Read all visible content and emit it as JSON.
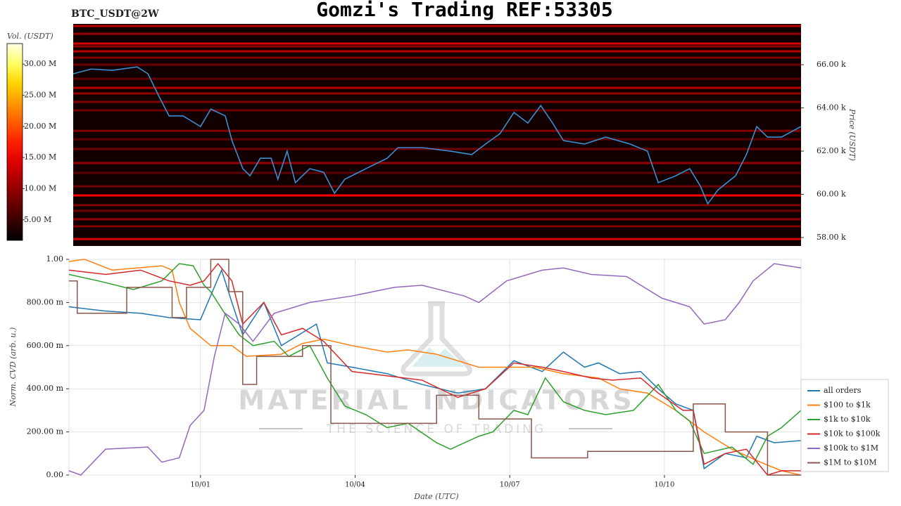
{
  "chart_data": [
    {
      "type": "heatmap",
      "title": "Gomzi's Trading REF:53305",
      "symbol": "BTC_USDT@2W",
      "y_label": "Price (USDT)",
      "colorbar_label": "Vol. (USDT)",
      "xlim": [
        -2.47,
        11.65
      ],
      "ylim": [
        57610,
        67890
      ],
      "yticks": [
        {
          "value": 58000,
          "label": "58.00 k"
        },
        {
          "value": 60000,
          "label": "60.00 k"
        },
        {
          "value": 62000,
          "label": "62.00 k"
        },
        {
          "value": 64000,
          "label": "64.00 k"
        },
        {
          "value": 66000,
          "label": "66.00 k"
        }
      ],
      "clim": [
        1.7,
        33.3
      ],
      "cticks": [
        {
          "value": 5,
          "label": "5.00 M"
        },
        {
          "value": 10,
          "label": "10.00 M"
        },
        {
          "value": 15,
          "label": "15.00 M"
        },
        {
          "value": 20,
          "label": "20.00 M"
        },
        {
          "value": 25,
          "label": "25.00 M"
        },
        {
          "value": 30,
          "label": "30.00 M"
        }
      ],
      "bands": {
        "price": [
          67790,
          67430,
          66980,
          66850,
          66620,
          66330,
          66000,
          65350,
          64930,
          64670,
          64280,
          63890,
          62940,
          62550,
          62100,
          61450,
          60990,
          60370,
          59950,
          59500,
          59240,
          58850,
          58520,
          57930
        ],
        "volume": [
          12,
          10,
          14,
          10,
          12,
          9,
          8,
          7,
          12,
          10,
          9,
          8,
          9,
          7,
          8,
          10,
          7,
          8,
          16,
          9,
          8,
          10,
          9,
          14
        ]
      },
      "price_line": {
        "color": "#3b8ed0",
        "x": [
          -2.47,
          -2.12,
          -1.71,
          -1.23,
          -1.02,
          -0.82,
          -0.61,
          -0.34,
          0,
          0.2,
          0.48,
          0.61,
          0.82,
          0.96,
          1.16,
          1.37,
          1.5,
          1.68,
          1.84,
          2.12,
          2.39,
          2.6,
          2.8,
          3.21,
          3.62,
          3.83,
          4.3,
          4.85,
          5.26,
          5.53,
          5.81,
          6.08,
          6.35,
          6.6,
          6.83,
          7.04,
          7.45,
          7.86,
          8.33,
          8.67,
          8.88,
          9.22,
          9.49,
          9.7,
          9.84,
          10.04,
          10.38,
          10.59,
          10.79,
          11,
          11.27,
          11.65
        ],
        "values": [
          65580,
          65800,
          65740,
          65900,
          65580,
          64600,
          63630,
          63630,
          63140,
          63950,
          63630,
          62490,
          61190,
          60860,
          61670,
          61670,
          60700,
          62000,
          60540,
          61190,
          61020,
          60050,
          60700,
          61190,
          61670,
          62160,
          62160,
          62000,
          61840,
          62330,
          62810,
          63790,
          63300,
          64110,
          63300,
          62490,
          62330,
          62650,
          62330,
          62000,
          60540,
          60860,
          61190,
          60370,
          59560,
          60210,
          60860,
          61840,
          63140,
          62650,
          62650,
          63140
        ]
      }
    },
    {
      "type": "line",
      "x_label": "Date (UTC)",
      "y_label": "Norm. CVD (arb. u.)",
      "xlim": [
        -2.55,
        11.65
      ],
      "ylim": [
        0,
        1
      ],
      "xticks": [
        {
          "value": 0,
          "label": "10/01"
        },
        {
          "value": 3,
          "label": "10/04"
        },
        {
          "value": 6,
          "label": "10/07"
        },
        {
          "value": 9,
          "label": "10/10"
        }
      ],
      "yticks": [
        {
          "value": 0,
          "label": "0.00"
        },
        {
          "value": 0.2,
          "label": "200.00 m"
        },
        {
          "value": 0.4,
          "label": "400.00 m"
        },
        {
          "value": 0.6,
          "label": "600.00 m"
        },
        {
          "value": 0.8,
          "label": "800.00 m"
        },
        {
          "value": 1,
          "label": "1.00"
        }
      ],
      "grid": true,
      "legend": "lower right",
      "watermark": [
        "MATERIAL INDICATORS",
        "THE SCIENCE OF TRADING"
      ],
      "series": [
        {
          "name": "all orders",
          "color": "#1f77b4",
          "x": [
            -2.55,
            -1.84,
            -1.16,
            -0.61,
            0,
            0.41,
            0.61,
            0.82,
            1.23,
            1.57,
            2.25,
            2.46,
            2.94,
            3.62,
            4.3,
            4.99,
            5.53,
            6.08,
            6.63,
            7.04,
            7.45,
            7.72,
            8.13,
            8.54,
            8.88,
            9.22,
            9.56,
            9.77,
            10.18,
            10.59,
            10.79,
            11.13,
            11.65
          ],
          "values": [
            0.78,
            0.76,
            0.75,
            0.73,
            0.72,
            0.95,
            0.8,
            0.65,
            0.8,
            0.6,
            0.7,
            0.52,
            0.5,
            0.47,
            0.42,
            0.38,
            0.4,
            0.53,
            0.48,
            0.57,
            0.5,
            0.52,
            0.47,
            0.48,
            0.4,
            0.33,
            0.3,
            0.03,
            0.1,
            0.08,
            0.18,
            0.15,
            0.16
          ]
        },
        {
          "name": "$100 to $1k",
          "color": "#ff7f0e",
          "x": [
            -2.55,
            -2.25,
            -1.71,
            -0.75,
            -0.55,
            -0.41,
            -0.2,
            0.2,
            0.61,
            0.89,
            1.57,
            1.98,
            2.39,
            2.94,
            3.62,
            4.03,
            4.58,
            5.4,
            5.94,
            6.49,
            7.04,
            7.72,
            8.13,
            8.67,
            9.22,
            9.77,
            10.31,
            10.86,
            11.27,
            11.65
          ],
          "values": [
            0.99,
            1.0,
            0.95,
            0.97,
            0.95,
            0.8,
            0.68,
            0.6,
            0.6,
            0.55,
            0.56,
            0.61,
            0.63,
            0.6,
            0.57,
            0.58,
            0.56,
            0.5,
            0.5,
            0.5,
            0.47,
            0.45,
            0.4,
            0.38,
            0.3,
            0.2,
            0.12,
            0.06,
            0.02,
            0
          ]
        },
        {
          "name": "$1k to $10k",
          "color": "#2ca02c",
          "x": [
            -2.55,
            -1.98,
            -1.3,
            -0.75,
            -0.41,
            -0.14,
            0.07,
            0.2,
            0.55,
            0.75,
            1.02,
            1.43,
            1.71,
            2.12,
            2.46,
            2.8,
            3.21,
            3.62,
            4.03,
            4.58,
            4.85,
            5.4,
            5.67,
            6.08,
            6.35,
            6.69,
            7.04,
            7.45,
            7.86,
            8.4,
            8.88,
            9.22,
            9.49,
            9.77,
            10.31,
            10.72,
            11,
            11.27,
            11.65
          ],
          "values": [
            0.93,
            0.9,
            0.86,
            0.9,
            0.98,
            0.97,
            0.88,
            0.85,
            0.72,
            0.65,
            0.6,
            0.62,
            0.55,
            0.6,
            0.45,
            0.32,
            0.28,
            0.22,
            0.24,
            0.15,
            0.12,
            0.18,
            0.2,
            0.3,
            0.28,
            0.45,
            0.34,
            0.3,
            0.28,
            0.3,
            0.42,
            0.3,
            0.25,
            0.1,
            0.13,
            0.05,
            0.18,
            0.22,
            0.3
          ]
        },
        {
          "name": "$10k to $100k",
          "color": "#d62728",
          "x": [
            -2.55,
            -1.84,
            -1.16,
            -0.61,
            -0.2,
            0.07,
            0.34,
            0.61,
            0.82,
            1.23,
            1.57,
            1.98,
            2.39,
            2.94,
            3.62,
            4.3,
            4.99,
            5.53,
            6.08,
            6.63,
            7.04,
            7.58,
            7.99,
            8.54,
            8.88,
            9.36,
            9.56,
            9.77,
            10.18,
            10.59,
            11,
            11.27,
            11.65
          ],
          "values": [
            0.95,
            0.93,
            0.95,
            0.9,
            0.88,
            0.9,
            0.98,
            0.9,
            0.7,
            0.8,
            0.65,
            0.68,
            0.62,
            0.48,
            0.46,
            0.44,
            0.36,
            0.4,
            0.52,
            0.5,
            0.48,
            0.45,
            0.44,
            0.45,
            0.38,
            0.3,
            0.3,
            0.05,
            0.1,
            0.12,
            0,
            0.02,
            0.02
          ]
        },
        {
          "name": "$100k to $1M",
          "color": "#9467bd",
          "x": [
            -2.55,
            -2.32,
            -1.84,
            -1.02,
            -0.75,
            -0.41,
            -0.2,
            0.07,
            0.27,
            0.48,
            0.75,
            1.02,
            1.43,
            2.12,
            2.94,
            3.76,
            4.3,
            5.12,
            5.4,
            5.94,
            6.63,
            7.04,
            7.58,
            8.27,
            8.95,
            9.49,
            9.77,
            10.18,
            10.45,
            10.72,
            11.13,
            11.65
          ],
          "values": [
            0.02,
            0,
            0.12,
            0.13,
            0.06,
            0.08,
            0.23,
            0.3,
            0.55,
            0.75,
            0.7,
            0.62,
            0.75,
            0.8,
            0.83,
            0.87,
            0.88,
            0.83,
            0.8,
            0.9,
            0.95,
            0.96,
            0.93,
            0.92,
            0.82,
            0.78,
            0.7,
            0.72,
            0.8,
            0.9,
            0.98,
            0.96
          ]
        },
        {
          "name": "$1M to $10M",
          "color": "#8c564b",
          "step": true,
          "x": [
            -2.55,
            -2.39,
            -1.43,
            -0.55,
            -0.27,
            0.2,
            0.55,
            0.82,
            1.09,
            1.98,
            2.53,
            4.58,
            5.4,
            6.42,
            7.51,
            9.56,
            10.18,
            11,
            11.65
          ],
          "values": [
            0.9,
            0.75,
            0.87,
            0.73,
            0.87,
            1.0,
            0.85,
            0.42,
            0.55,
            0.6,
            0.24,
            0.37,
            0.26,
            0.08,
            0.11,
            0.33,
            0.2,
            0,
            0
          ]
        }
      ]
    }
  ]
}
